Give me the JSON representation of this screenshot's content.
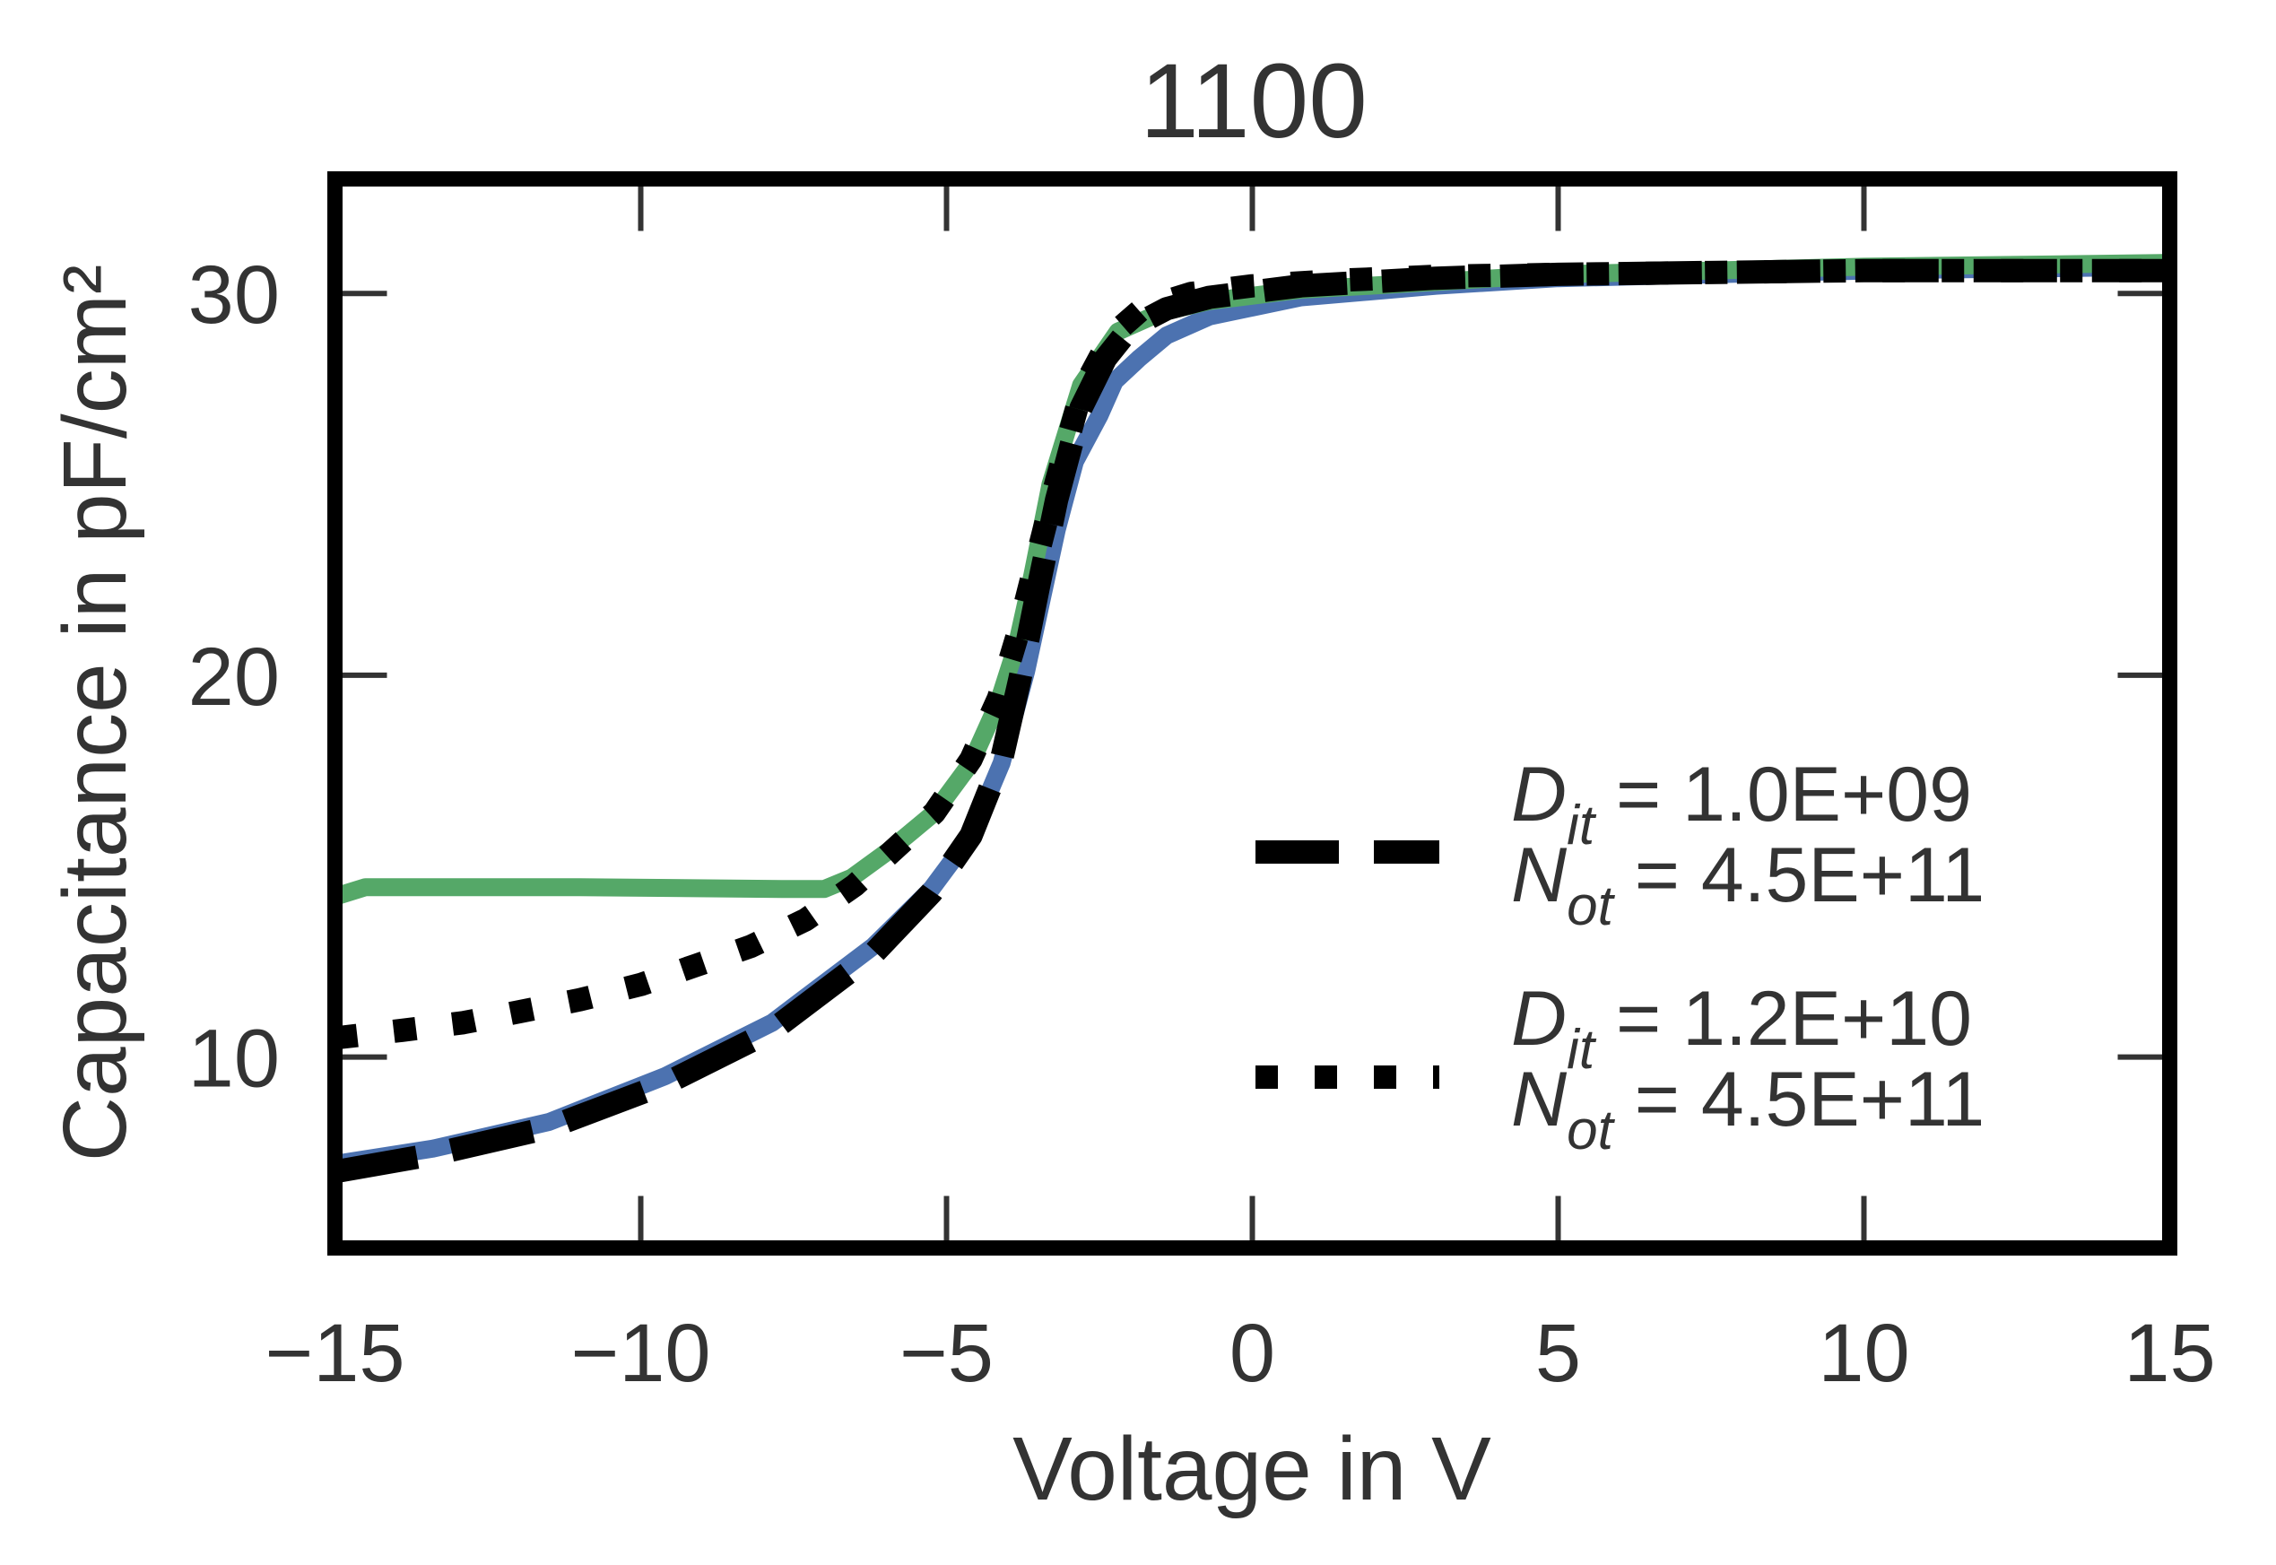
{
  "chart_data": {
    "type": "line",
    "title": "1100",
    "xlabel": "Voltage in V",
    "ylabel": "Capacitance in pF/cm²",
    "xlim": [
      -15,
      15
    ],
    "ylim": [
      5,
      33
    ],
    "xticks": [
      -15,
      -10,
      -5,
      0,
      5,
      10,
      15
    ],
    "xtick_labels": [
      "−15",
      "−10",
      "−5",
      "0",
      "5",
      "10",
      "15"
    ],
    "yticks": [
      10,
      20,
      30
    ],
    "ytick_labels": [
      "10",
      "20",
      "30"
    ],
    "grid": false,
    "legend_position": "center-right",
    "series": [
      {
        "name": "measured (blue)",
        "color": "#4c72b0",
        "style": "solid",
        "in_legend": false,
        "x": [
          -15,
          -13.4,
          -11.5,
          -9.6,
          -7.85,
          -6.2,
          -5.25,
          -4.6,
          -4.1,
          -3.7,
          -3.2,
          -2.9,
          -2.5,
          -2.25,
          -1.85,
          -1.4,
          -0.7,
          0.8,
          3,
          5,
          10,
          15
        ],
        "y": [
          7.2,
          7.6,
          8.3,
          9.5,
          10.9,
          12.9,
          14.4,
          15.8,
          17.7,
          20.1,
          23.8,
          25.6,
          26.8,
          27.7,
          28.3,
          28.9,
          29.4,
          29.9,
          30.2,
          30.4,
          30.6,
          30.7
        ]
      },
      {
        "name": "measured (green)",
        "color": "#55a868",
        "style": "solid",
        "in_legend": false,
        "x": [
          -15,
          -14.5,
          -11,
          -7.7,
          -7.0,
          -6.55,
          -5.95,
          -5.2,
          -4.6,
          -4.15,
          -3.85,
          -3.6,
          -3.3,
          -2.8,
          -2.2,
          -1.5,
          -0.7,
          0.8,
          3,
          5,
          10,
          15
        ],
        "y": [
          14.2,
          14.45,
          14.45,
          14.4,
          14.4,
          14.7,
          15.4,
          16.4,
          17.7,
          19.3,
          20.8,
          22.6,
          25.0,
          27.6,
          29.0,
          29.5,
          29.8,
          30.1,
          30.3,
          30.5,
          30.7,
          30.8
        ]
      },
      {
        "name": "Dit = 1.0E+09, Not = 4.5E+11",
        "color": "#000000",
        "style": "dashed",
        "in_legend": true,
        "legend_lines": [
          {
            "symbol": "D",
            "sub": "it",
            "value": " = 1.0E+09"
          },
          {
            "symbol": "N",
            "sub": "ot",
            "value": " = 4.5E+11"
          }
        ],
        "x": [
          -15,
          -13.4,
          -11.5,
          -9.6,
          -7.85,
          -6.2,
          -5.25,
          -4.6,
          -4.1,
          -3.8,
          -3.5,
          -3.2,
          -2.8,
          -2.4,
          -2.0,
          -1.4,
          -0.7,
          0.8,
          3,
          5,
          10,
          15
        ],
        "y": [
          7.0,
          7.45,
          8.15,
          9.3,
          10.7,
          12.7,
          14.3,
          15.8,
          17.8,
          19.9,
          22.3,
          24.6,
          27.0,
          28.3,
          29.1,
          29.6,
          29.9,
          30.2,
          30.4,
          30.5,
          30.6,
          30.6
        ]
      },
      {
        "name": "Dit = 1.2E+10, Not = 4.5E+11",
        "color": "#000000",
        "style": "dotted",
        "in_legend": true,
        "legend_lines": [
          {
            "symbol": "D",
            "sub": "it",
            "value": " = 1.2E+10"
          },
          {
            "symbol": "N",
            "sub": "ot",
            "value": " = 4.5E+11"
          }
        ],
        "x": [
          -15,
          -13.9,
          -12.9,
          -11.95,
          -11.0,
          -10.0,
          -9.1,
          -8.2,
          -7.3,
          -6.5,
          -5.95,
          -5.2,
          -4.6,
          -4.15,
          -3.85,
          -3.55,
          -3.2,
          -2.8,
          -2.3,
          -1.8,
          -1.0,
          0,
          1.5,
          3,
          5,
          10,
          15
        ],
        "y": [
          10.5,
          10.7,
          10.9,
          11.2,
          11.5,
          11.9,
          12.4,
          12.9,
          13.6,
          14.5,
          15.3,
          16.4,
          17.8,
          19.4,
          21.0,
          22.9,
          25.1,
          27.4,
          28.9,
          29.6,
          30.0,
          30.2,
          30.35,
          30.45,
          30.5,
          30.6,
          30.6
        ]
      }
    ]
  }
}
